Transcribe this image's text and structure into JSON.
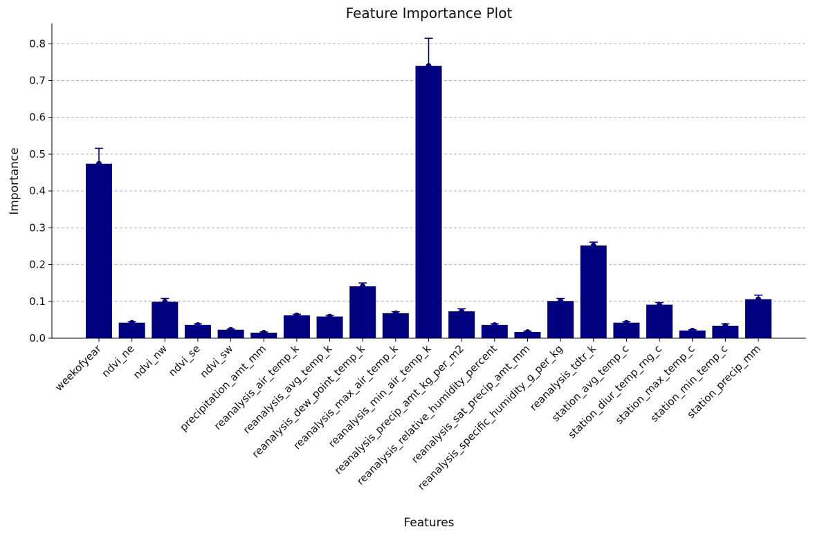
{
  "chart_data": {
    "type": "bar",
    "title": "Feature Importance Plot",
    "xlabel": "Features",
    "ylabel": "Importance",
    "ylim": [
      0,
      0.855
    ],
    "yticks": [
      "0.0",
      "0.1",
      "0.2",
      "0.3",
      "0.4",
      "0.5",
      "0.6",
      "0.7",
      "0.8"
    ],
    "grid": "horizontal-dashed",
    "legend": "none",
    "bar_color": "#000080",
    "categories": [
      "weekofyear",
      "ndvi_ne",
      "ndvi_nw",
      "ndvi_se",
      "ndvi_sw",
      "precipitation_amt_mm",
      "reanalysis_air_temp_k",
      "reanalysis_avg_temp_k",
      "reanalysis_dew_point_temp_k",
      "reanalysis_max_air_temp_k",
      "reanalysis_min_air_temp_k",
      "reanalysis_precip_amt_kg_per_m2",
      "reanalysis_relative_humidity_percent",
      "reanalysis_sat_precip_amt_mm",
      "reanalysis_specific_humidity_g_per_kg",
      "reanalysis_tdtr_k",
      "station_avg_temp_c",
      "station_diur_temp_rng_c",
      "station_max_temp_c",
      "station_min_temp_c",
      "station_precip_mm"
    ],
    "values": [
      0.474,
      0.042,
      0.099,
      0.036,
      0.023,
      0.015,
      0.062,
      0.059,
      0.141,
      0.068,
      0.74,
      0.073,
      0.036,
      0.017,
      0.101,
      0.252,
      0.042,
      0.091,
      0.021,
      0.034,
      0.106
    ],
    "errors": [
      0.042,
      0.003,
      0.009,
      0.003,
      0.002,
      0.002,
      0.003,
      0.003,
      0.009,
      0.004,
      0.075,
      0.007,
      0.003,
      0.002,
      0.007,
      0.009,
      0.003,
      0.006,
      0.002,
      0.005,
      0.011
    ]
  }
}
